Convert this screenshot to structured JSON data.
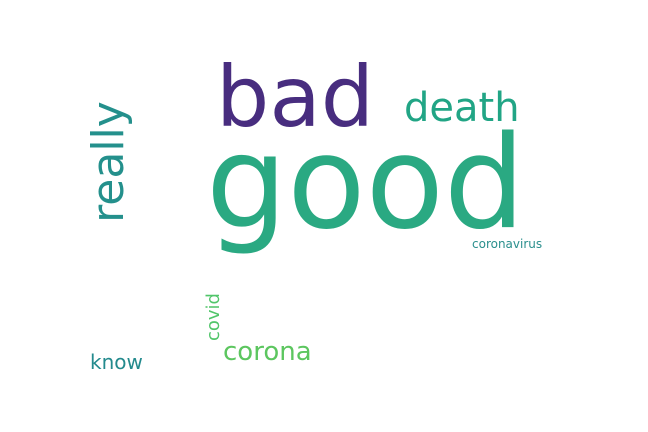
{
  "words": [
    {
      "text": "good",
      "color": "#2aa982",
      "orientation": "horizontal"
    },
    {
      "text": "bad",
      "color": "#482d7f",
      "orientation": "horizontal"
    },
    {
      "text": "really",
      "color": "#24908c",
      "orientation": "vertical"
    },
    {
      "text": "death",
      "color": "#21a585",
      "orientation": "horizontal"
    },
    {
      "text": "coronavirus",
      "color": "#2a8f8d",
      "orientation": "horizontal"
    },
    {
      "text": "covid",
      "color": "#51c56a",
      "orientation": "vertical"
    },
    {
      "text": "corona",
      "color": "#5cc65f",
      "orientation": "horizontal"
    },
    {
      "text": "know",
      "color": "#238a8d",
      "orientation": "horizontal"
    }
  ]
}
